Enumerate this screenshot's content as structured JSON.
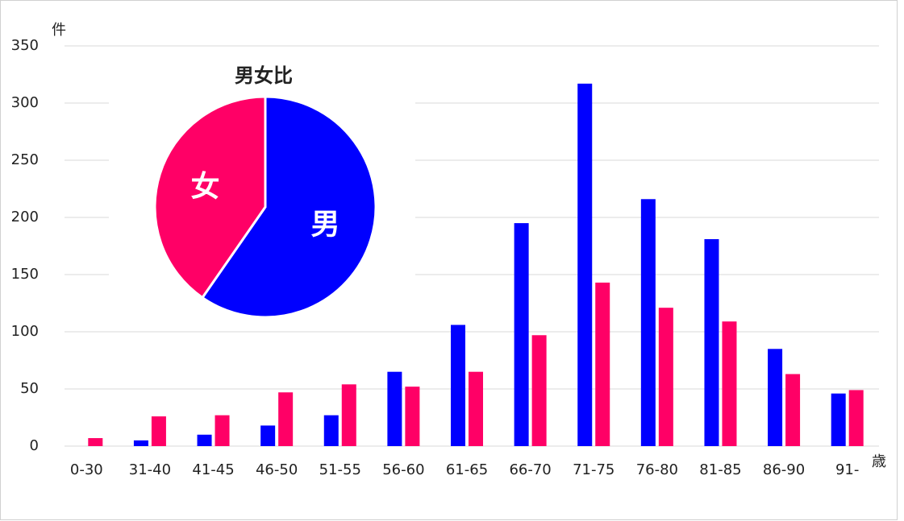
{
  "chart_data": [
    {
      "type": "bar",
      "y_label": "件",
      "x_label": "歳",
      "categories": [
        "0-30",
        "31-40",
        "41-45",
        "46-50",
        "51-55",
        "56-60",
        "61-65",
        "66-70",
        "71-75",
        "76-80",
        "81-85",
        "86-90",
        "91-"
      ],
      "series": [
        {
          "color": "#0000ff",
          "values": [
            0,
            5,
            10,
            18,
            27,
            65,
            106,
            195,
            317,
            216,
            181,
            85,
            46
          ]
        },
        {
          "color": "#ff0066",
          "values": [
            7,
            26,
            27,
            47,
            54,
            52,
            65,
            97,
            143,
            121,
            109,
            63,
            49
          ]
        }
      ],
      "ylim": [
        0,
        350
      ],
      "yticks": [
        0,
        50,
        100,
        150,
        200,
        250,
        300,
        350
      ],
      "grid": true
    },
    {
      "type": "pie",
      "title": "男女比",
      "categories": [
        "男",
        "女"
      ],
      "values": [
        1271,
        860
      ],
      "colors": [
        "#0000ff",
        "#ff0066"
      ]
    }
  ]
}
